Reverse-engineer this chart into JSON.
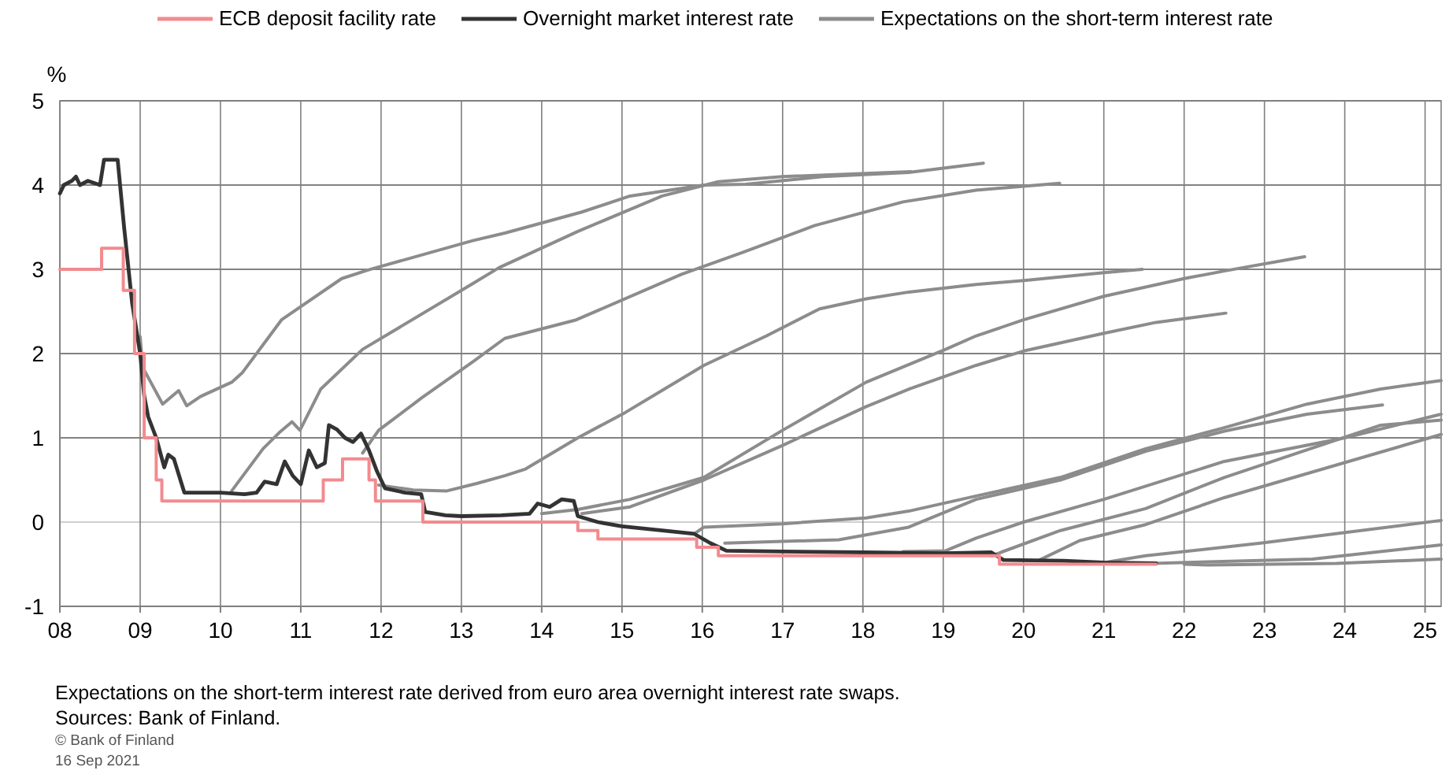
{
  "chart_data": {
    "type": "line",
    "ylabel": "%",
    "legend": "top",
    "grid": true,
    "xlim": [
      2008,
      2025.2
    ],
    "xticks": [
      {
        "value": 2008,
        "label": "08"
      },
      {
        "value": 2009,
        "label": "09"
      },
      {
        "value": 2010,
        "label": "10"
      },
      {
        "value": 2011,
        "label": "11"
      },
      {
        "value": 2012,
        "label": "12"
      },
      {
        "value": 2013,
        "label": "13"
      },
      {
        "value": 2014,
        "label": "14"
      },
      {
        "value": 2015,
        "label": "15"
      },
      {
        "value": 2016,
        "label": "16"
      },
      {
        "value": 2017,
        "label": "17"
      },
      {
        "value": 2018,
        "label": "18"
      },
      {
        "value": 2019,
        "label": "19"
      },
      {
        "value": 2020,
        "label": "20"
      },
      {
        "value": 2021,
        "label": "21"
      },
      {
        "value": 2022,
        "label": "22"
      },
      {
        "value": 2023,
        "label": "23"
      },
      {
        "value": 2024,
        "label": "24"
      },
      {
        "value": 2025,
        "label": "25"
      }
    ],
    "ylim": [
      -1,
      5
    ],
    "yticks": [
      -1,
      0,
      1,
      2,
      3,
      4,
      5
    ],
    "annotations": [
      "Expectations on the short-term interest rate derived from euro area overnight interest rate swaps.",
      "Sources: Bank of Finland.",
      "© Bank of Finland",
      "16 Sep 2021"
    ],
    "series": [
      {
        "name": "ECB deposit facility rate",
        "type": "step",
        "color": "#f28b8f",
        "x": [
          2008,
          2008.52,
          2008.79,
          2008.93,
          2009.05,
          2009.2,
          2009.27,
          2011.28,
          2011.52,
          2011.85,
          2011.93,
          2012.52,
          2014.45,
          2014.7,
          2015.93,
          2016.2,
          2019.7,
          2021.65
        ],
        "values": [
          3,
          3.25,
          2.75,
          2,
          1,
          0.5,
          0.25,
          0.5,
          0.75,
          0.5,
          0.25,
          0,
          -0.1,
          -0.2,
          -0.3,
          -0.4,
          -0.5,
          -0.5
        ]
      },
      {
        "name": "Overnight market interest rate",
        "type": "line",
        "color": "#333333",
        "x": [
          2008,
          2008.05,
          2008.15,
          2008.2,
          2008.25,
          2008.35,
          2008.5,
          2008.55,
          2008.72,
          2008.8,
          2008.9,
          2009,
          2009.05,
          2009.1,
          2009.2,
          2009.3,
          2009.35,
          2009.42,
          2009.55,
          2009.8,
          2010,
          2010.3,
          2010.45,
          2010.55,
          2010.7,
          2010.8,
          2010.9,
          2011,
          2011.1,
          2011.2,
          2011.3,
          2011.35,
          2011.45,
          2011.55,
          2011.65,
          2011.75,
          2011.85,
          2011.95,
          2012.05,
          2012.3,
          2012.5,
          2012.55,
          2012.8,
          2013,
          2013.5,
          2013.85,
          2013.95,
          2014.1,
          2014.25,
          2014.4,
          2014.45,
          2014.7,
          2015,
          2015.5,
          2015.9,
          2016.1,
          2016.3,
          2017,
          2018,
          2019,
          2019.6,
          2019.75,
          2020.5,
          2021,
          2021.65
        ],
        "values": [
          3.9,
          4,
          4.05,
          4.1,
          4,
          4.05,
          4,
          4.3,
          4.3,
          3.5,
          2.6,
          2,
          1.5,
          1.25,
          1,
          0.65,
          0.8,
          0.75,
          0.35,
          0.35,
          0.35,
          0.33,
          0.35,
          0.48,
          0.45,
          0.72,
          0.55,
          0.45,
          0.85,
          0.65,
          0.7,
          1.15,
          1.1,
          1,
          0.95,
          1.05,
          0.85,
          0.6,
          0.4,
          0.35,
          0.33,
          0.12,
          0.08,
          0.07,
          0.08,
          0.1,
          0.22,
          0.18,
          0.27,
          0.25,
          0.07,
          0,
          -0.05,
          -0.1,
          -0.14,
          -0.25,
          -0.34,
          -0.35,
          -0.36,
          -0.37,
          -0.36,
          -0.45,
          -0.46,
          -0.48,
          -0.49
        ]
      },
      {
        "name": "Expectations on the short-term interest rate",
        "type": "line",
        "color": "#8c8c8c",
        "x": [
          2009,
          2009.03,
          2009.28,
          2009.48,
          2009.58,
          2009.75,
          2010.14,
          2010.27,
          2010.76,
          2011.51,
          2011.83,
          2013.14,
          2013.54,
          2014.5,
          2015.1,
          2016.02,
          2016.54,
          2017.5,
          2018.57,
          2019.5
        ],
        "values": [
          2.2,
          1.84,
          1.4,
          1.56,
          1.38,
          1.49,
          1.66,
          1.77,
          2.4,
          2.89,
          2.99,
          3.34,
          3.43,
          3.68,
          3.87,
          4.0,
          4.01,
          4.1,
          4.15,
          4.26
        ]
      },
      {
        "type": "line",
        "color": "#8c8c8c",
        "x": [
          2010.14,
          2010.53,
          2010.73,
          2010.89,
          2010.99,
          2011.25,
          2011.77,
          2013.14,
          2013.47,
          2014.45,
          2015.5,
          2016.2,
          2017,
          2018.6
        ],
        "values": [
          0.37,
          0.87,
          1.06,
          1.19,
          1.09,
          1.58,
          2.05,
          2.83,
          3.02,
          3.45,
          3.87,
          4.04,
          4.1,
          4.16
        ]
      },
      {
        "type": "line",
        "color": "#8c8c8c",
        "x": [
          2011.77,
          2011.97,
          2012.5,
          2013.14,
          2013.54,
          2014.43,
          2015.74,
          2016.5,
          2017.4,
          2018.5,
          2019.41,
          2020.45
        ],
        "values": [
          0.82,
          1.09,
          1.47,
          1.9,
          2.18,
          2.4,
          2.94,
          3.2,
          3.52,
          3.8,
          3.94,
          4.02
        ]
      },
      {
        "type": "line",
        "color": "#8c8c8c",
        "x": [
          2011.97,
          2012.4,
          2012.82,
          2013.2,
          2013.54,
          2013.8,
          2014.45,
          2015.04,
          2016.02,
          2016.8,
          2017.46,
          2018.04,
          2018.57,
          2019.41,
          2020.03,
          2021,
          2021.48
        ],
        "values": [
          0.44,
          0.38,
          0.37,
          0.46,
          0.55,
          0.63,
          1,
          1.3,
          1.86,
          2.21,
          2.53,
          2.65,
          2.73,
          2.82,
          2.87,
          2.96,
          3
        ]
      },
      {
        "type": "line",
        "color": "#8c8c8c",
        "x": [
          2014,
          2014.45,
          2015.1,
          2016.02,
          2017,
          2018.04,
          2019.03,
          2019.41,
          2020,
          2021,
          2022,
          2022.5,
          2023.5
        ],
        "values": [
          0.1,
          0.15,
          0.27,
          0.53,
          1.09,
          1.66,
          2.05,
          2.21,
          2.4,
          2.68,
          2.89,
          2.98,
          3.15
        ]
      },
      {
        "type": "line",
        "color": "#8c8c8c",
        "x": [
          2014.5,
          2015.1,
          2016.02,
          2017,
          2018.04,
          2018.58,
          2019.41,
          2020,
          2021,
          2021.65,
          2022.52
        ],
        "values": [
          0.1,
          0.18,
          0.5,
          0.91,
          1.37,
          1.58,
          1.86,
          2.03,
          2.24,
          2.37,
          2.48
        ]
      },
      {
        "type": "line",
        "color": "#8c8c8c",
        "x": [
          2015.9,
          2016.02,
          2017,
          2018.04,
          2018.57,
          2019.41,
          2020.46,
          2021.52,
          2022.5,
          2023.53,
          2024.45,
          2025.2
        ],
        "values": [
          -0.14,
          -0.06,
          -0.02,
          0.05,
          0.13,
          0.31,
          0.53,
          0.87,
          1.12,
          1.4,
          1.58,
          1.68
        ]
      },
      {
        "type": "line",
        "color": "#8c8c8c",
        "x": [
          2016.28,
          2017.7,
          2018.57,
          2019.41,
          2020.46,
          2021.52,
          2022.5,
          2023.53,
          2024.47
        ],
        "values": [
          -0.25,
          -0.21,
          -0.06,
          0.27,
          0.5,
          0.84,
          1.08,
          1.28,
          1.39
        ]
      },
      {
        "type": "line",
        "color": "#8c8c8c",
        "x": [
          2018.5,
          2019.03,
          2019.41,
          2020,
          2021,
          2022.5,
          2024,
          2025.2
        ],
        "values": [
          -0.35,
          -0.34,
          -0.19,
          0,
          0.27,
          0.72,
          1,
          1.28
        ]
      },
      {
        "type": "line",
        "color": "#8c8c8c",
        "x": [
          2019.6,
          2020.46,
          2021.52,
          2022.5,
          2024.45,
          2025.2
        ],
        "values": [
          -0.4,
          -0.1,
          0.16,
          0.53,
          1.15,
          1.21
        ]
      },
      {
        "type": "line",
        "color": "#8c8c8c",
        "x": [
          2020.2,
          2020.7,
          2021.52,
          2022.5,
          2025.2
        ],
        "values": [
          -0.45,
          -0.22,
          -0.03,
          0.29,
          1.04
        ]
      },
      {
        "type": "line",
        "color": "#8c8c8c",
        "x": [
          2021,
          2021.52,
          2022.95,
          2025.2
        ],
        "values": [
          -0.48,
          -0.4,
          -0.25,
          0.02
        ]
      },
      {
        "type": "line",
        "color": "#8c8c8c",
        "x": [
          2021.6,
          2023.6,
          2025.2
        ],
        "values": [
          -0.49,
          -0.44,
          -0.27
        ]
      },
      {
        "type": "line",
        "color": "#8c8c8c",
        "x": [
          2022,
          2022.3,
          2023.9,
          2025.2
        ],
        "values": [
          -0.5,
          -0.51,
          -0.49,
          -0.44
        ]
      }
    ]
  }
}
